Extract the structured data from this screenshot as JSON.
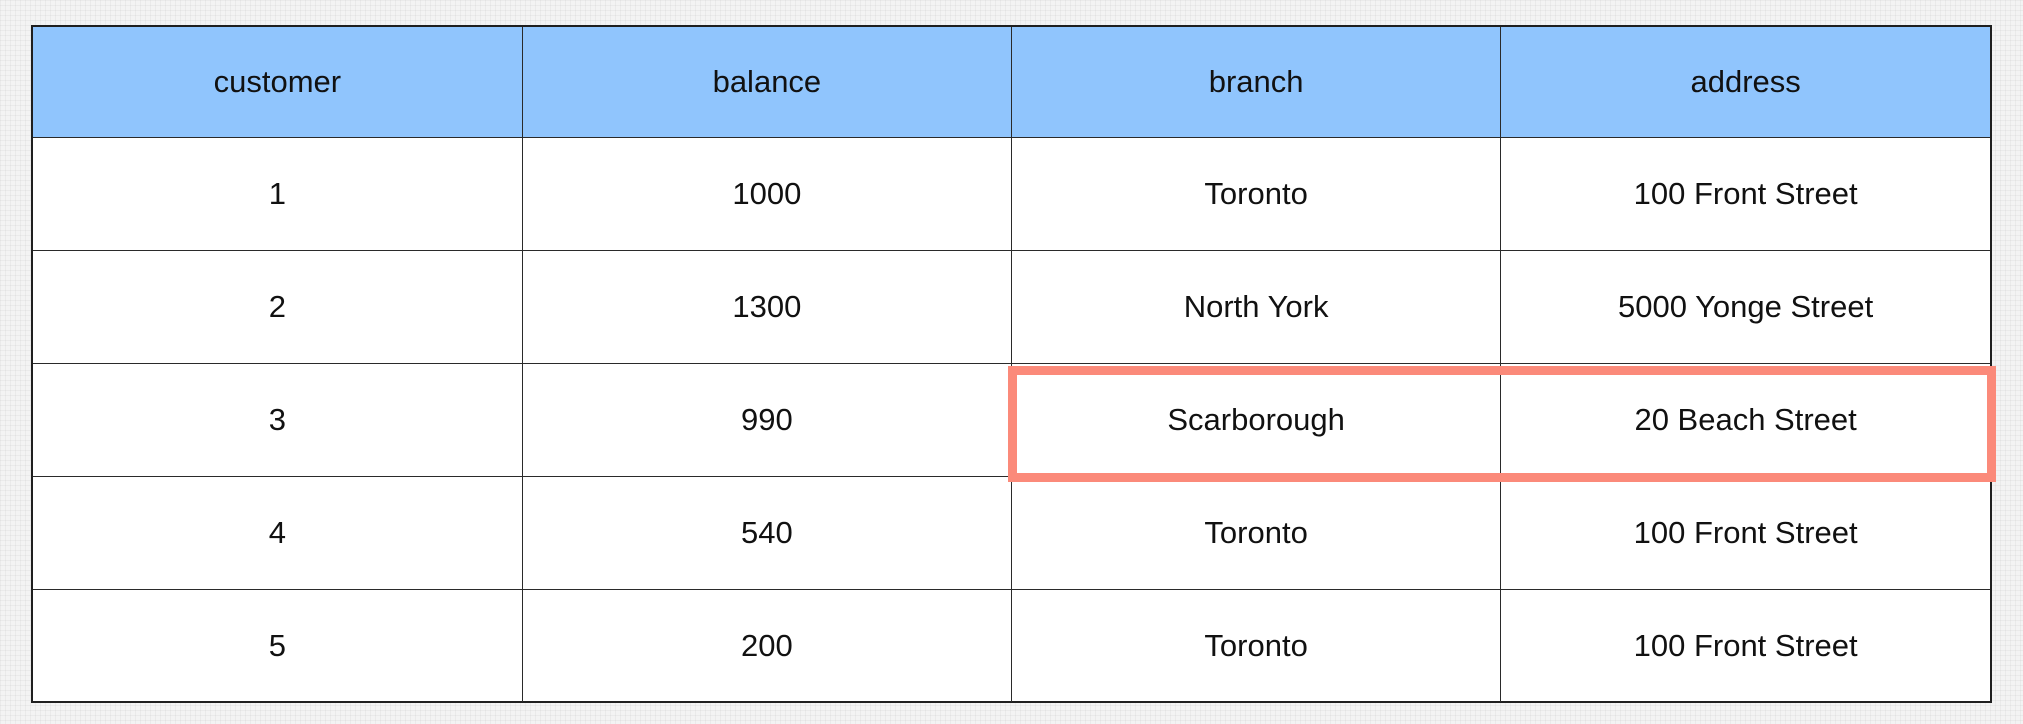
{
  "table": {
    "columns": [
      "customer",
      "balance",
      "branch",
      "address"
    ],
    "rows": [
      [
        "1",
        "1000",
        "Toronto",
        "100 Front Street"
      ],
      [
        "2",
        "1300",
        "North York",
        "5000 Yonge Street"
      ],
      [
        "3",
        "990",
        "Scarborough",
        "20 Beach Street"
      ],
      [
        "4",
        "540",
        "Toronto",
        "100 Front Street"
      ],
      [
        "5",
        "200",
        "Toronto",
        "100 Front Street"
      ]
    ]
  },
  "highlight": {
    "row": 3,
    "columns": [
      "branch",
      "address"
    ],
    "color": "#fb8a7a"
  },
  "colors": {
    "header_bg": "#90c5fd",
    "cell_bg": "#ffffff",
    "border": "#2a2a2a"
  }
}
